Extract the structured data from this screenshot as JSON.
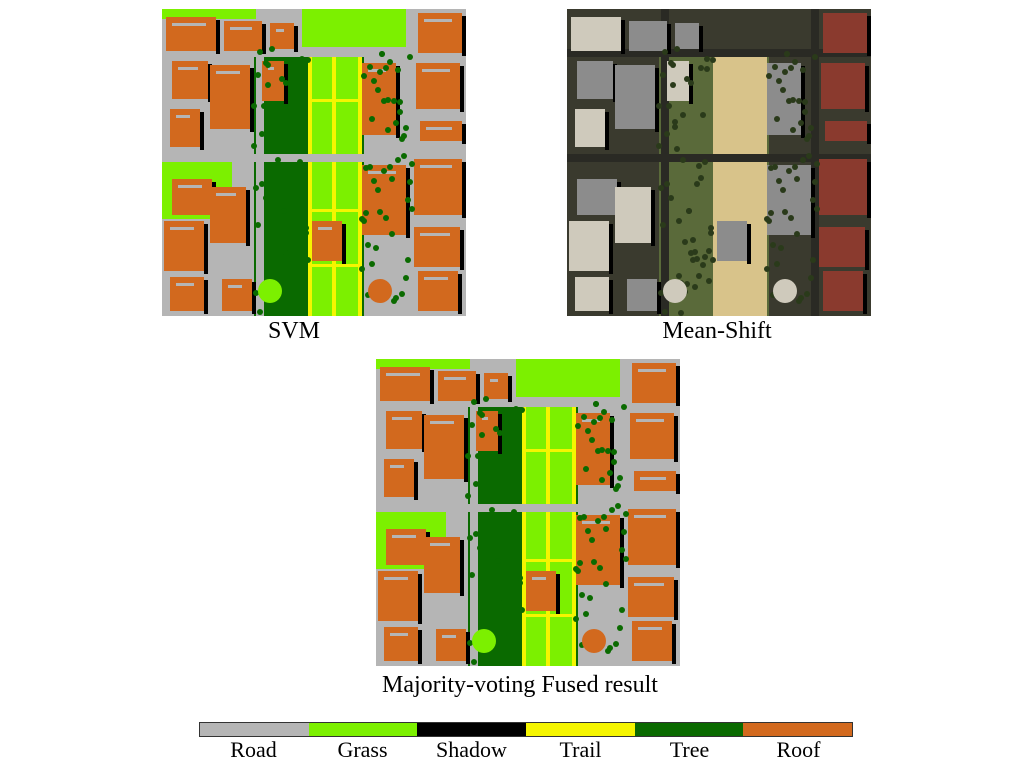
{
  "panels": {
    "svm": {
      "caption": "SVM"
    },
    "mean_shift": {
      "caption": "Mean-Shift"
    },
    "fused": {
      "caption": "Majority-voting Fused result"
    }
  },
  "legend": {
    "items": [
      {
        "label": "Road",
        "color": "#b5b5b5"
      },
      {
        "label": "Grass",
        "color": "#7cf000"
      },
      {
        "label": "Shadow",
        "color": "#000000"
      },
      {
        "label": "Trail",
        "color": "#f5f500"
      },
      {
        "label": "Tree",
        "color": "#0a6a00"
      },
      {
        "label": "Roof",
        "color": "#d2691e"
      }
    ]
  },
  "colors": {
    "road": "#b5b5b5",
    "grass": "#7cf000",
    "shadow": "#000000",
    "trail": "#f5f500",
    "tree": "#0a6a00",
    "roof": "#d2691e",
    "photo_bg": "#3a3a2e",
    "photo_roof": "#8a3a2e",
    "photo_light": "#cfcabc",
    "photo_trail": "#d8c38a",
    "photo_grass": "#5a6a3a",
    "photo_gray": "#8c8c8c"
  }
}
